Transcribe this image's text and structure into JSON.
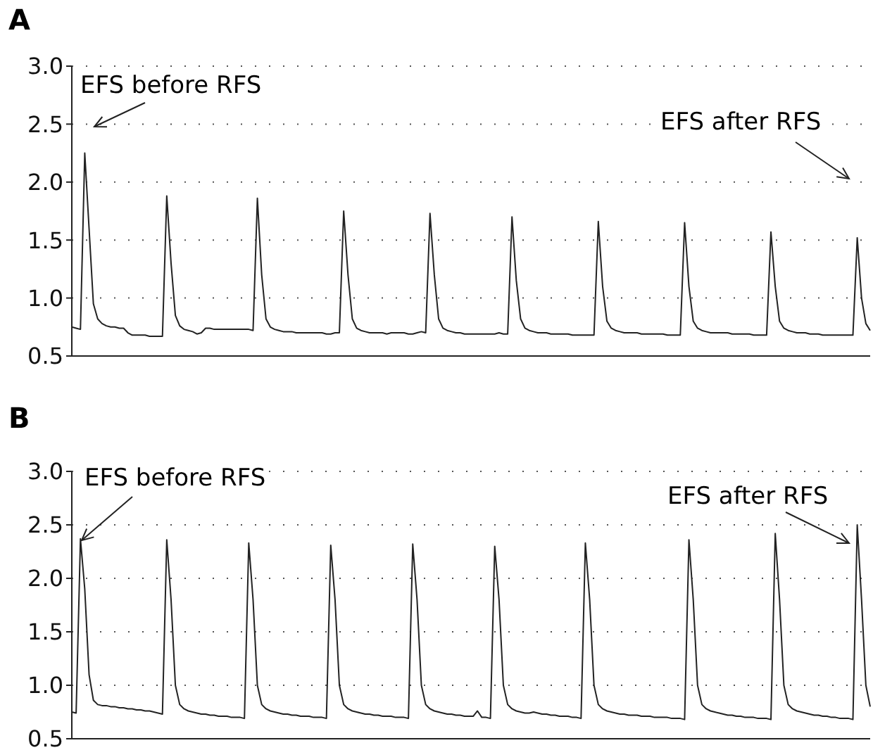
{
  "chart_data": [
    {
      "type": "line",
      "title": "A",
      "categories": [
        null,
        null,
        null,
        null,
        null,
        null,
        null,
        null,
        null,
        null,
        null,
        null,
        null,
        null,
        null,
        null,
        null,
        null,
        null,
        null,
        null,
        null,
        null,
        null,
        null,
        null,
        null,
        null,
        null,
        null,
        null,
        null,
        null,
        null,
        null,
        null,
        null,
        null,
        null,
        null,
        null,
        null,
        null,
        null,
        null,
        null,
        null,
        null,
        null,
        null,
        null,
        null,
        null,
        null,
        null,
        null,
        null,
        null,
        null,
        null,
        null,
        null,
        null,
        null,
        null,
        null,
        null,
        null,
        null,
        null,
        null,
        null,
        null,
        null,
        null,
        null,
        null,
        null,
        null,
        null,
        null,
        null,
        null,
        null,
        null,
        null,
        null,
        null,
        null,
        null,
        null,
        null,
        null,
        null,
        null,
        null,
        null,
        null,
        null,
        null,
        null,
        null,
        null,
        null,
        null,
        null,
        null,
        null,
        null,
        null,
        null,
        null,
        null,
        null,
        null,
        null,
        null,
        null,
        null,
        null,
        null,
        null,
        null,
        null,
        null,
        null,
        null,
        null,
        null,
        null,
        null,
        null,
        null,
        null,
        null,
        null,
        null,
        null,
        null,
        null,
        null,
        null,
        null,
        null,
        null,
        null,
        null,
        null,
        null,
        null,
        null,
        null,
        null,
        null,
        null,
        null,
        null,
        null,
        null,
        null,
        null,
        null,
        null,
        null,
        null,
        null,
        null,
        null,
        null,
        null,
        null,
        null,
        null,
        null,
        null,
        null,
        null,
        null,
        null,
        null,
        null,
        null,
        null,
        null,
        null,
        null
      ],
      "series": [
        {
          "color": "#222222",
          "values": [
            0.75,
            0.74,
            0.73,
            2.25,
            1.6,
            0.95,
            0.82,
            0.78,
            0.76,
            0.75,
            0.75,
            0.74,
            0.74,
            0.7,
            0.68,
            0.68,
            0.68,
            0.68,
            0.67,
            0.67,
            0.67,
            0.67,
            1.88,
            1.3,
            0.85,
            0.76,
            0.73,
            0.72,
            0.71,
            0.69,
            0.7,
            0.74,
            0.74,
            0.73,
            0.73,
            0.73,
            0.73,
            0.73,
            0.73,
            0.73,
            0.73,
            0.73,
            0.72,
            1.86,
            1.2,
            0.82,
            0.75,
            0.73,
            0.72,
            0.71,
            0.71,
            0.71,
            0.7,
            0.7,
            0.7,
            0.7,
            0.7,
            0.7,
            0.7,
            0.69,
            0.69,
            0.7,
            0.7,
            1.75,
            1.2,
            0.82,
            0.74,
            0.72,
            0.71,
            0.7,
            0.7,
            0.7,
            0.7,
            0.69,
            0.7,
            0.7,
            0.7,
            0.7,
            0.69,
            0.69,
            0.7,
            0.71,
            0.7,
            1.73,
            1.2,
            0.82,
            0.74,
            0.72,
            0.71,
            0.7,
            0.7,
            0.69,
            0.69,
            0.69,
            0.69,
            0.69,
            0.69,
            0.69,
            0.69,
            0.7,
            0.69,
            0.69,
            1.7,
            1.15,
            0.82,
            0.74,
            0.72,
            0.71,
            0.7,
            0.7,
            0.7,
            0.69,
            0.69,
            0.69,
            0.69,
            0.69,
            0.68,
            0.68,
            0.68,
            0.68,
            0.68,
            0.68,
            1.66,
            1.1,
            0.8,
            0.74,
            0.72,
            0.71,
            0.7,
            0.7,
            0.7,
            0.7,
            0.69,
            0.69,
            0.69,
            0.69,
            0.69,
            0.69,
            0.68,
            0.68,
            0.68,
            0.68,
            1.65,
            1.1,
            0.8,
            0.74,
            0.72,
            0.71,
            0.7,
            0.7,
            0.7,
            0.7,
            0.7,
            0.69,
            0.69,
            0.69,
            0.69,
            0.69,
            0.68,
            0.68,
            0.68,
            0.68,
            1.57,
            1.1,
            0.8,
            0.74,
            0.72,
            0.71,
            0.7,
            0.7,
            0.7,
            0.69,
            0.69,
            0.69,
            0.68,
            0.68,
            0.68,
            0.68,
            0.68,
            0.68,
            0.68,
            0.68,
            1.52,
            1.0,
            0.78,
            0.72
          ]
        }
      ],
      "ylim": [
        0.5,
        3.0
      ],
      "yticks": [
        0.5,
        {
          "value": 1,
          "label": "1.0"
        },
        1.5,
        {
          "value": 2,
          "label": "2.0"
        },
        2.5,
        {
          "value": 3,
          "label": "3.0"
        }
      ],
      "grid": "y",
      "tick_labels": "y",
      "annotations": [
        "EFS before RFS",
        "EFS after RFS"
      ]
    },
    {
      "type": "line",
      "title": "B",
      "categories": [
        null,
        null,
        null,
        null,
        null,
        null,
        null,
        null,
        null,
        null,
        null,
        null,
        null,
        null,
        null,
        null,
        null,
        null,
        null,
        null,
        null,
        null,
        null,
        null,
        null,
        null,
        null,
        null,
        null,
        null,
        null,
        null,
        null,
        null,
        null,
        null,
        null,
        null,
        null,
        null,
        null,
        null,
        null,
        null,
        null,
        null,
        null,
        null,
        null,
        null,
        null,
        null,
        null,
        null,
        null,
        null,
        null,
        null,
        null,
        null,
        null,
        null,
        null,
        null,
        null,
        null,
        null,
        null,
        null,
        null,
        null,
        null,
        null,
        null,
        null,
        null,
        null,
        null,
        null,
        null,
        null,
        null,
        null,
        null,
        null,
        null,
        null,
        null,
        null,
        null,
        null,
        null,
        null,
        null,
        null,
        null,
        null,
        null,
        null,
        null,
        null,
        null,
        null,
        null,
        null,
        null,
        null,
        null,
        null,
        null,
        null,
        null,
        null,
        null,
        null,
        null,
        null,
        null,
        null,
        null,
        null,
        null,
        null,
        null,
        null,
        null,
        null,
        null,
        null,
        null,
        null,
        null,
        null,
        null,
        null,
        null,
        null,
        null,
        null,
        null,
        null,
        null,
        null,
        null,
        null,
        null,
        null,
        null,
        null,
        null,
        null,
        null,
        null,
        null,
        null,
        null,
        null,
        null,
        null,
        null,
        null,
        null,
        null,
        null,
        null,
        null,
        null,
        null,
        null,
        null,
        null,
        null,
        null,
        null,
        null,
        null,
        null,
        null,
        null,
        null,
        null,
        null,
        null,
        null,
        null,
        null
      ],
      "series": [
        {
          "color": "#222222",
          "values": [
            0.75,
            0.74,
            2.37,
            1.9,
            1.1,
            0.86,
            0.82,
            0.81,
            0.81,
            0.8,
            0.8,
            0.79,
            0.79,
            0.78,
            0.78,
            0.77,
            0.77,
            0.76,
            0.76,
            0.75,
            0.74,
            0.73,
            2.36,
            1.8,
            1.0,
            0.82,
            0.78,
            0.76,
            0.75,
            0.74,
            0.73,
            0.73,
            0.72,
            0.72,
            0.71,
            0.71,
            0.71,
            0.7,
            0.7,
            0.7,
            0.69,
            2.33,
            1.8,
            1.0,
            0.82,
            0.78,
            0.76,
            0.75,
            0.74,
            0.73,
            0.73,
            0.72,
            0.72,
            0.71,
            0.71,
            0.71,
            0.7,
            0.7,
            0.7,
            0.69,
            2.31,
            1.8,
            1.0,
            0.82,
            0.78,
            0.76,
            0.75,
            0.74,
            0.73,
            0.73,
            0.72,
            0.72,
            0.71,
            0.71,
            0.71,
            0.7,
            0.7,
            0.7,
            0.69,
            2.32,
            1.8,
            1.0,
            0.82,
            0.78,
            0.76,
            0.75,
            0.74,
            0.73,
            0.73,
            0.72,
            0.72,
            0.71,
            0.71,
            0.71,
            0.76,
            0.7,
            0.7,
            0.69,
            2.3,
            1.8,
            1.0,
            0.82,
            0.78,
            0.76,
            0.75,
            0.74,
            0.74,
            0.75,
            0.74,
            0.73,
            0.73,
            0.72,
            0.72,
            0.71,
            0.71,
            0.71,
            0.7,
            0.7,
            0.69,
            2.33,
            1.8,
            1.0,
            0.82,
            0.78,
            0.76,
            0.75,
            0.74,
            0.73,
            0.73,
            0.72,
            0.72,
            0.72,
            0.71,
            0.71,
            0.71,
            0.7,
            0.7,
            0.7,
            0.7,
            0.69,
            0.69,
            0.69,
            0.68,
            2.36,
            1.8,
            1.0,
            0.82,
            0.78,
            0.76,
            0.75,
            0.74,
            0.73,
            0.72,
            0.72,
            0.71,
            0.71,
            0.7,
            0.7,
            0.7,
            0.69,
            0.69,
            0.69,
            0.68,
            2.42,
            1.8,
            1.0,
            0.82,
            0.78,
            0.76,
            0.75,
            0.74,
            0.73,
            0.72,
            0.72,
            0.71,
            0.71,
            0.7,
            0.7,
            0.69,
            0.69,
            0.69,
            0.68,
            2.5,
            1.8,
            1.0,
            0.8
          ]
        }
      ],
      "ylim": [
        0.5,
        3.0
      ],
      "yticks": [
        0.5,
        {
          "value": 1,
          "label": "1.0"
        },
        1.5,
        {
          "value": 2,
          "label": "2.0"
        },
        2.5,
        {
          "value": 3,
          "label": "3.0"
        }
      ],
      "grid": "y",
      "tick_labels": "y",
      "annotations": [
        "EFS before RFS",
        "EFS after RFS"
      ]
    }
  ]
}
